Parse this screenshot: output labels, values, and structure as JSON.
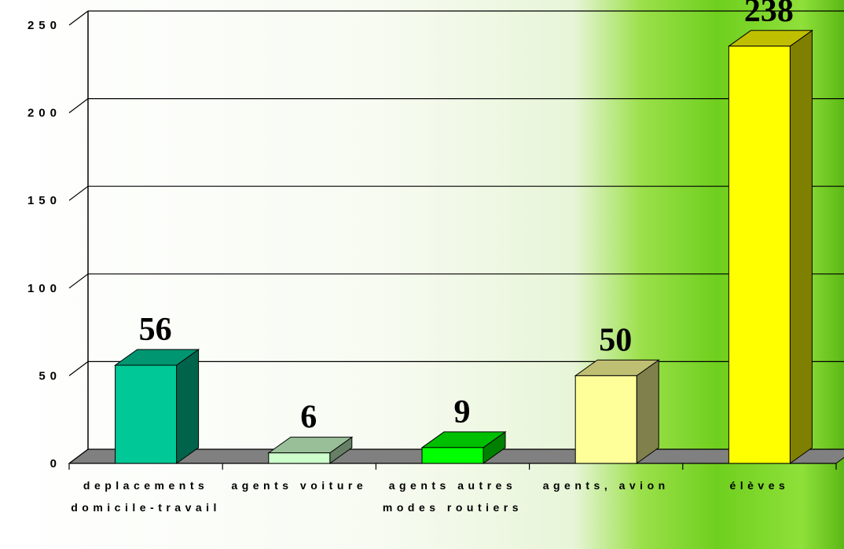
{
  "chart_data": {
    "type": "bar3d",
    "categories": [
      "deplacements domicile-travail",
      "agents voiture",
      "agents autres modes routiers",
      "agents, avion",
      "élèves"
    ],
    "values": [
      56,
      6,
      9,
      50,
      238
    ],
    "colors": [
      "#00c896",
      "#ccffcc",
      "#00ff00",
      "#ffff99",
      "#ffff00"
    ],
    "ylim": [
      0,
      250
    ],
    "yticks": [
      0,
      50,
      100,
      150,
      200,
      250
    ],
    "grid": true
  }
}
